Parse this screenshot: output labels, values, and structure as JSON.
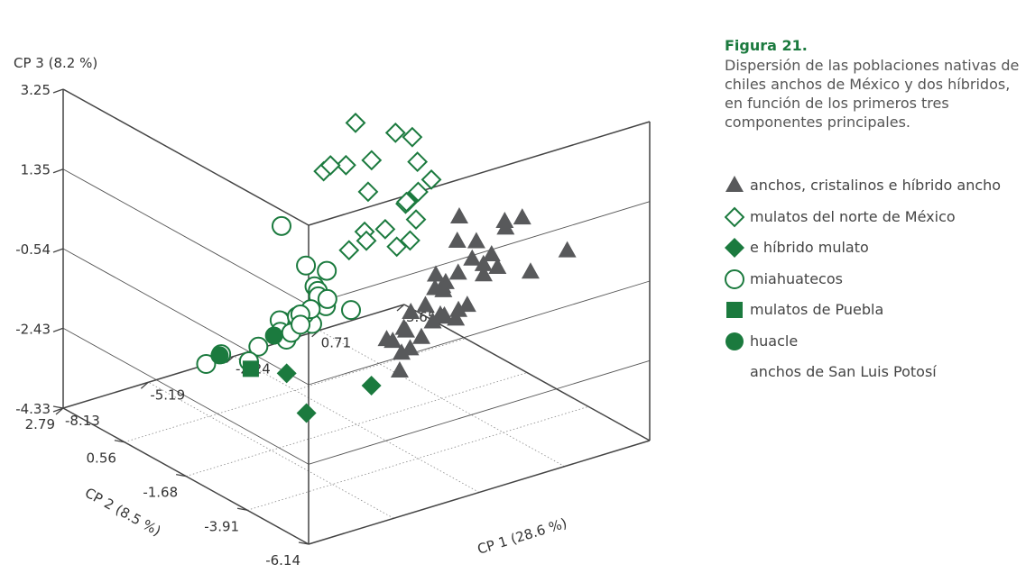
{
  "caption": {
    "title": "Figura 21.",
    "text": "Dispersión de las poblaciones nativas de chiles anchos de México y dos híbridos, en función de los primeros tres componentes principales."
  },
  "colors": {
    "dark_gray": "#58595b",
    "green": "#1b7a3e",
    "axis": "#444444"
  },
  "legend": [
    {
      "symbol": "triangle-filled-gray",
      "label": "anchos, cristalinos e híbrido ancho"
    },
    {
      "symbol": "diamond-open-green",
      "label": "mulatos del norte de México"
    },
    {
      "symbol": "diamond-filled-green",
      "label": "e híbrido mulato"
    },
    {
      "symbol": "circle-open-green",
      "label": "miahuatecos"
    },
    {
      "symbol": "square-filled-green",
      "label": "mulatos de Puebla"
    },
    {
      "symbol": "circle-filled-green",
      "label": "huacle"
    },
    {
      "symbol": "",
      "label": "anchos de San Luis Potosí"
    }
  ],
  "chart_data": {
    "type": "scatter3d",
    "title": "",
    "axes": {
      "x": {
        "label": "CP 1 (28.6 %)",
        "ticks": [
          "-8.13",
          "-5.19",
          "-2.24",
          "0.71",
          "3.65"
        ],
        "range": [
          -8.13,
          3.65
        ]
      },
      "y": {
        "label": "CP 2 (8.5 %)",
        "ticks": [
          "-6.14",
          "-3.91",
          "-1.68",
          "0.56",
          "2.79"
        ],
        "range": [
          -6.14,
          2.79
        ]
      },
      "z": {
        "label": "CP 3 (8.2 %)",
        "ticks": [
          "-4.33",
          "-2.43",
          "-0.54",
          "1.35",
          "3.25"
        ],
        "range": [
          -4.33,
          3.25
        ]
      }
    },
    "grid": true,
    "legend_position": "right",
    "series": [
      {
        "name": "anchos, cristalinos e híbrido ancho",
        "marker": "triangle-filled",
        "points": [
          [
            -0.8,
            -3.9,
            1.1
          ],
          [
            0.2,
            -4.5,
            1.0
          ],
          [
            0.9,
            -4.4,
            0.9
          ],
          [
            0.8,
            -3.9,
            0.5
          ],
          [
            1.6,
            -5.3,
            0.3
          ],
          [
            -0.4,
            -4.1,
            0.5
          ],
          [
            -0.3,
            -3.3,
            0.2
          ],
          [
            -1.8,
            -4.1,
            0.0
          ],
          [
            0.6,
            -3.6,
            -0.2
          ],
          [
            0.5,
            -3.0,
            -0.5
          ],
          [
            0.3,
            -2.7,
            -0.9
          ],
          [
            0.7,
            -3.2,
            -0.6
          ],
          [
            0.9,
            -3.5,
            -0.6
          ],
          [
            0.8,
            -3.1,
            -0.9
          ],
          [
            2.8,
            -2.7,
            -1.4
          ],
          [
            -1.1,
            -3.6,
            -0.6
          ],
          [
            -0.7,
            -3.3,
            -0.7
          ],
          [
            -2.0,
            -3.4,
            -1.1
          ],
          [
            -1.4,
            -3.3,
            -1.1
          ],
          [
            -0.4,
            -2.9,
            -1.1
          ],
          [
            -0.5,
            -2.7,
            -1.1
          ],
          [
            -1.5,
            -2.7,
            -1.9
          ],
          [
            -0.6,
            -3.0,
            -1.6
          ],
          [
            -0.1,
            -2.6,
            -1.9
          ],
          [
            0.9,
            -2.4,
            -1.9
          ],
          [
            0.3,
            -2.2,
            -2.1
          ],
          [
            0.5,
            -2.5,
            -1.9
          ],
          [
            0.6,
            -2.3,
            -2.2
          ],
          [
            -0.2,
            -2.3,
            -2.1
          ],
          [
            -1.1,
            -2.2,
            -2.1
          ],
          [
            -1.6,
            -2.1,
            -2.3
          ],
          [
            -1.2,
            -1.9,
            -2.5
          ],
          [
            -0.4,
            -2.1,
            -2.5
          ],
          [
            -0.6,
            -1.9,
            -2.8
          ],
          [
            -0.8,
            -1.8,
            -2.9
          ],
          [
            -0.2,
            -1.1,
            -3.7
          ]
        ]
      },
      {
        "name": "mulatos del norte de México",
        "marker": "diamond-open",
        "points": [
          [
            -2.2,
            -1.6,
            2.8
          ],
          [
            -1.2,
            -2.0,
            2.5
          ],
          [
            -1.0,
            -2.4,
            2.5
          ],
          [
            -3.1,
            -2.2,
            2.2
          ],
          [
            -2.5,
            -2.5,
            2.3
          ],
          [
            -1.2,
            -2.8,
            2.1
          ],
          [
            -3.0,
            -2.9,
            1.8
          ],
          [
            -1.1,
            -3.2,
            1.8
          ],
          [
            -2.2,
            -3.8,
            1.3
          ],
          [
            -3.5,
            -3.3,
            1.1
          ],
          [
            -2.5,
            -3.9,
            0.9
          ],
          [
            -1.8,
            -3.0,
            1.3
          ],
          [
            -2.0,
            -3.3,
            1.5
          ],
          [
            -2.6,
            -3.1,
            0.9
          ],
          [
            -5.2,
            -3.6,
            3.0
          ],
          [
            -4.3,
            -2.9,
            2.7
          ],
          [
            -1.2,
            -2.4,
            1.0
          ],
          [
            -0.7,
            -2.3,
            1.1
          ],
          [
            -2.2,
            -3.1,
            0.4
          ],
          [
            -2.9,
            -2.1,
            0.1
          ],
          [
            -2.3,
            -2.1,
            0.2
          ]
        ]
      },
      {
        "name": "e híbrido mulato",
        "marker": "diamond-filled",
        "points": [
          [
            -2.6,
            -2.6,
            -3.0
          ],
          [
            -3.8,
            -1.5,
            -3.8
          ],
          [
            -2.3,
            0.8,
            -4.0
          ]
        ]
      },
      {
        "name": "miahuatecos",
        "marker": "circle-open",
        "points": [
          [
            -5.8,
            -2.7,
            1.5
          ],
          [
            -6.0,
            -3.8,
            1.0
          ],
          [
            -5.8,
            -3.9,
            0.5
          ],
          [
            -5.5,
            -4.0,
            0.0
          ],
          [
            -4.9,
            -3.4,
            0.5
          ],
          [
            -7.6,
            -4.6,
            0.3
          ],
          [
            -7.1,
            -4.0,
            0.0
          ],
          [
            -5.4,
            -3.6,
            0.2
          ],
          [
            -5.1,
            -3.3,
            -0.1
          ],
          [
            -4.5,
            -3.0,
            -0.4
          ],
          [
            -6.7,
            -3.6,
            -0.5
          ],
          [
            -5.5,
            -3.5,
            -0.6
          ],
          [
            -5.3,
            -3.0,
            -0.6
          ],
          [
            -4.6,
            -2.5,
            -0.8
          ],
          [
            -6.2,
            -3.3,
            -0.9
          ],
          [
            -3.4,
            -2.7,
            -1.0
          ],
          [
            -4.7,
            -2.1,
            -1.1
          ],
          [
            -6.6,
            -2.7,
            -1.2
          ],
          [
            -7.4,
            -3.2,
            -1.2
          ],
          [
            -4.8,
            -2.0,
            -1.5
          ],
          [
            -4.2,
            -1.7,
            -1.3
          ],
          [
            -4.1,
            -1.6,
            -1.6
          ],
          [
            -5.7,
            -0.4,
            -2.4
          ],
          [
            -6.6,
            -0.8,
            -2.3
          ]
        ]
      },
      {
        "name": "mulatos de Puebla",
        "marker": "square-filled",
        "points": [
          [
            -8.0,
            -3.9,
            -1.0
          ]
        ]
      },
      {
        "name": "huacle",
        "marker": "circle-filled",
        "points": [
          [
            -5.3,
            -1.9,
            -1.5
          ],
          [
            -6.8,
            -1.5,
            -1.8
          ]
        ]
      }
    ]
  }
}
